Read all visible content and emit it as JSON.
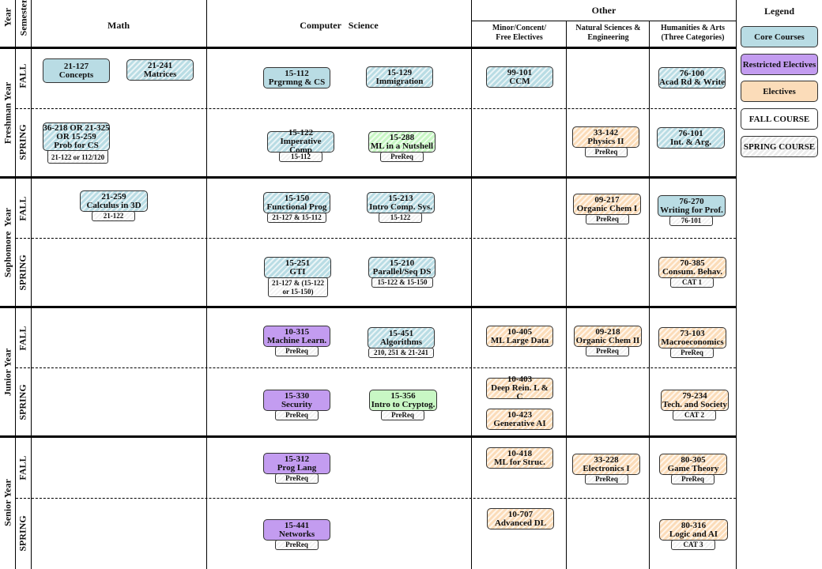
{
  "headers": {
    "year": "Year",
    "semester": "Semester",
    "math": "Math",
    "cs": "Computer   Science",
    "other": "Other",
    "minor": "Minor/Concent/\nFree Electives",
    "natsci": "Natural Sciences &\nEngineering",
    "hum": "Humanities & Arts\n(Three Categories)",
    "legend": "Legend"
  },
  "years": [
    "Freshman Year",
    "Sophomore  Year",
    "Junior Year",
    "Senior Year"
  ],
  "semesters": {
    "fall": "FALL",
    "spring": "SPRING"
  },
  "legend": [
    "Core Courses",
    "Restricted Electives",
    "Electives",
    "FALL COURSE",
    "SPRING COURSE"
  ],
  "colors": {
    "core": "#b9dce4",
    "restricted": "#c39cf0",
    "elective": "#fbdcb9",
    "green": "#c8f7c4"
  },
  "courses": [
    {
      "code": "21-127",
      "name": "Concepts",
      "pre": ""
    },
    {
      "code": "21-241",
      "name": "Matrices",
      "pre": ""
    },
    {
      "code": "15-112",
      "name": "Prgrmng & CS",
      "pre": ""
    },
    {
      "code": "15-129",
      "name": "Immigration",
      "pre": ""
    },
    {
      "code": "99-101",
      "name": "CCM",
      "pre": ""
    },
    {
      "code": "76-100",
      "name": "Acad Rd & Write",
      "pre": ""
    },
    {
      "code": "36-218 OR 21-325\nOR 15-259",
      "name": "Prob for CS",
      "pre": "21-122 or 112/120"
    },
    {
      "code": "15-122",
      "name": "Imperative Comp",
      "pre": "15-112"
    },
    {
      "code": "15-288",
      "name": "ML in a Nutshell",
      "pre": "PreReq"
    },
    {
      "code": "33-142",
      "name": "Physics II",
      "pre": "PreReq"
    },
    {
      "code": "76-101",
      "name": "Int. & Arg.",
      "pre": ""
    },
    {
      "code": "21-259",
      "name": "Calculus in 3D",
      "pre": "21-122"
    },
    {
      "code": "15-150",
      "name": "Functional Prog",
      "pre": "21-127 & 15-112"
    },
    {
      "code": "15-213",
      "name": "Intro Comp. Sys.",
      "pre": "15-122"
    },
    {
      "code": "09-217",
      "name": "Organic Chem I",
      "pre": "PreReq"
    },
    {
      "code": "76-270",
      "name": "Writing for Prof.",
      "pre": "76-101"
    },
    {
      "code": "15-251",
      "name": "GTI",
      "pre": "21-127 & (15-122\nor 15-150)"
    },
    {
      "code": "15-210",
      "name": "Parallel/Seq DS",
      "pre": "15-122 & 15-150"
    },
    {
      "code": "70-385",
      "name": "Consum. Behav.",
      "pre": "CAT 1"
    },
    {
      "code": "10-315",
      "name": "Machine Learn.",
      "pre": "PreReq"
    },
    {
      "code": "15-451",
      "name": "Algorithms",
      "pre": "210, 251 & 21-241"
    },
    {
      "code": "10-405",
      "name": "ML Large Data",
      "pre": ""
    },
    {
      "code": "09-218",
      "name": "Organic Chem II",
      "pre": "PreReq"
    },
    {
      "code": "73-103",
      "name": "Macroeconomics",
      "pre": "PreReq"
    },
    {
      "code": "15-330",
      "name": "Security",
      "pre": "PreReq"
    },
    {
      "code": "15-356",
      "name": "Intro to Cryptog.",
      "pre": "PreReq"
    },
    {
      "code": "10-403",
      "name": "Deep Rein. L & C",
      "pre": ""
    },
    {
      "code": "10-423",
      "name": "Generative AI",
      "pre": ""
    },
    {
      "code": "79-234",
      "name": "Tech. and Society",
      "pre": "CAT 2"
    },
    {
      "code": "15-312",
      "name": "Prog Lang",
      "pre": "PreReq"
    },
    {
      "code": "10-418",
      "name": "ML for Struc.",
      "pre": ""
    },
    {
      "code": "33-228",
      "name": "Electronics I",
      "pre": "PreReq"
    },
    {
      "code": "80-305",
      "name": "Game Theory",
      "pre": "PreReq"
    },
    {
      "code": "15-441",
      "name": "Networks",
      "pre": "PreReq"
    },
    {
      "code": "10-707",
      "name": "Advanced DL",
      "pre": ""
    },
    {
      "code": "80-316",
      "name": "Logic and AI",
      "pre": "CAT 3"
    }
  ]
}
